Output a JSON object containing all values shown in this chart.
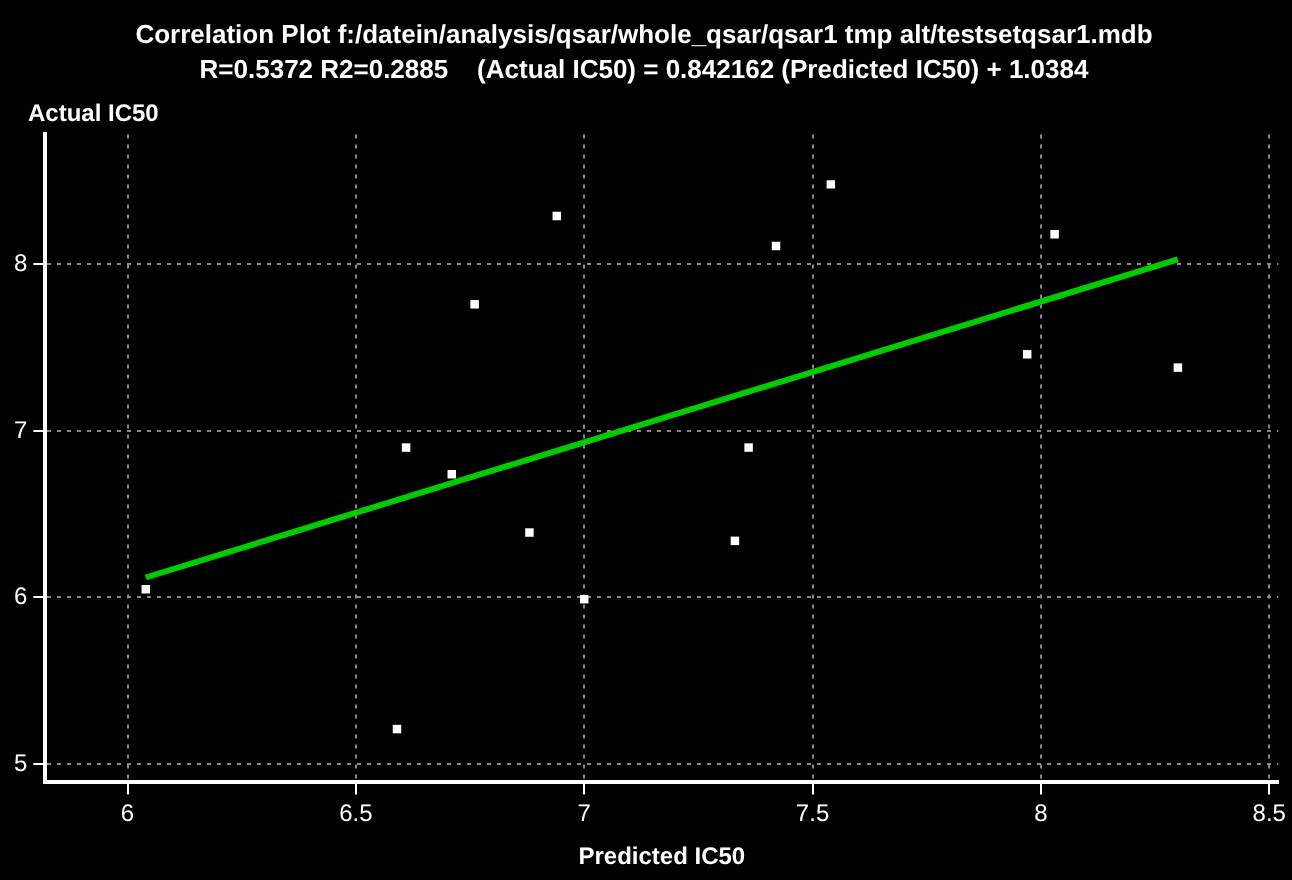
{
  "chart_data": {
    "type": "scatter",
    "title": "Correlation Plot f:/datein/analysis/qsar/whole_qsar/qsar1 tmp alt/testsetqsar1.mdb",
    "subtitle": "R=0.5372 R2=0.2885    (Actual IC50) = 0.842162 (Predicted IC50) + 1.0384",
    "xlabel": "Predicted IC50",
    "ylabel": "Actual IC50",
    "xlim": [
      5.82,
      8.52
    ],
    "xticks": [
      6,
      6.5,
      7,
      7.5,
      8,
      8.5
    ],
    "ylim": [
      4.89,
      8.78
    ],
    "yticks": [
      5,
      6,
      7,
      8
    ],
    "grid": true,
    "legend": false,
    "series": [
      {
        "color": "#ffffff",
        "marker": "square",
        "x": [
          6.04,
          6.59,
          6.61,
          6.71,
          6.76,
          6.88,
          6.94,
          7.0,
          7.33,
          7.36,
          7.42,
          7.54,
          7.97,
          8.03,
          8.3
        ],
        "values": [
          6.05,
          5.21,
          6.9,
          6.74,
          7.76,
          6.39,
          8.29,
          5.99,
          6.34,
          6.9,
          8.11,
          8.48,
          7.46,
          8.18,
          7.38
        ]
      },
      {
        "type": "line",
        "color": "#00cc00",
        "marker": "none",
        "line_style": "solid",
        "x": [
          6.04,
          8.3
        ],
        "values": [
          6.12,
          8.03
        ]
      }
    ]
  }
}
